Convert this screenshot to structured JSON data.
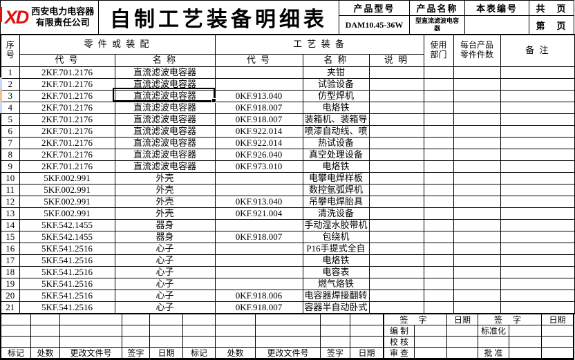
{
  "header": {
    "logo_text": "XD",
    "company_name": "西安电力电容器\n有限责任公司",
    "title": "自制工艺装备明细表",
    "product_model_label": "产品型号",
    "product_model_value": "DAM10.45-36W",
    "product_name_label": "产品名称",
    "product_name_value": "型直流滤波电容器",
    "sheet_number_label": "本表编号",
    "total_pages_label": "共　页",
    "page_number_label": "第　页"
  },
  "table": {
    "headers": {
      "seq": "序\n号",
      "parts_group": "零 件 或 装 配",
      "process_group": "工 艺 装 备",
      "part_code": "代  号",
      "part_name": "名  称",
      "proc_code": "代  号",
      "proc_name": "名  称",
      "description": "说   明",
      "department": "使用\n部门",
      "qty_per_product": "每台产品\n零件件数",
      "remark": "备   注"
    },
    "rows": [
      {
        "no": "1",
        "part_code": "2KF.701.2176",
        "part_name": "直流滤波电容器",
        "proc_code": "",
        "proc_name": "夹钳",
        "desc": "",
        "dept": "",
        "qty": "",
        "remark": ""
      },
      {
        "no": "2",
        "part_code": "2KF.701.2176",
        "part_name": "直流滤波电容器",
        "proc_code": "",
        "proc_name": "试验设备",
        "desc": "",
        "dept": "",
        "qty": "",
        "remark": ""
      },
      {
        "no": "3",
        "part_code": "2KF.701.2176",
        "part_name": "直流滤波电容器",
        "proc_code": "0KF.913.040",
        "proc_name": "仿型焊机",
        "desc": "",
        "dept": "",
        "qty": "",
        "remark": ""
      },
      {
        "no": "4",
        "part_code": "2KF.701.2176",
        "part_name": "直流滤波电容器",
        "proc_code": "0KF.918.007",
        "proc_name": "电烙铁",
        "desc": "",
        "dept": "",
        "qty": "",
        "remark": ""
      },
      {
        "no": "5",
        "part_code": "2KF.701.2176",
        "part_name": "直流滤波电容器",
        "proc_code": "0KF.918.007",
        "proc_name": "装箱机、装箱导",
        "desc": "",
        "dept": "",
        "qty": "",
        "remark": ""
      },
      {
        "no": "6",
        "part_code": "2KF.701.2176",
        "part_name": "直流滤波电容器",
        "proc_code": "0KF.922.014",
        "proc_name": "喷漆自动线、喷",
        "desc": "",
        "dept": "",
        "qty": "",
        "remark": ""
      },
      {
        "no": "7",
        "part_code": "2KF.701.2176",
        "part_name": "直流滤波电容器",
        "proc_code": "0KF.922.014",
        "proc_name": "热试设备",
        "desc": "",
        "dept": "",
        "qty": "",
        "remark": ""
      },
      {
        "no": "8",
        "part_code": "2KF.701.2176",
        "part_name": "直流滤波电容器",
        "proc_code": "0KF.926.040",
        "proc_name": "真空处理设备",
        "desc": "",
        "dept": "",
        "qty": "",
        "remark": ""
      },
      {
        "no": "9",
        "part_code": "2KF.701.2176",
        "part_name": "直流滤波电容器",
        "proc_code": "0KF.973.010",
        "proc_name": "电烙铁",
        "desc": "",
        "dept": "",
        "qty": "",
        "remark": ""
      },
      {
        "no": "10",
        "part_code": "5KF.002.991",
        "part_name": "外壳",
        "proc_code": "",
        "proc_name": "电攀电焊样板",
        "desc": "",
        "dept": "",
        "qty": "",
        "remark": ""
      },
      {
        "no": "11",
        "part_code": "5KF.002.991",
        "part_name": "外壳",
        "proc_code": "",
        "proc_name": "数控氩弧焊机",
        "desc": "",
        "dept": "",
        "qty": "",
        "remark": ""
      },
      {
        "no": "12",
        "part_code": "5KF.002.991",
        "part_name": "外壳",
        "proc_code": "0KF.913.040",
        "proc_name": "吊攀电焊胎具",
        "desc": "",
        "dept": "",
        "qty": "",
        "remark": ""
      },
      {
        "no": "13",
        "part_code": "5KF.002.991",
        "part_name": "外壳",
        "proc_code": "0KF.921.004",
        "proc_name": "清洗设备",
        "desc": "",
        "dept": "",
        "qty": "",
        "remark": ""
      },
      {
        "no": "14",
        "part_code": "5KF.542.1455",
        "part_name": "器身",
        "proc_code": "",
        "proc_name": "手动湿水胶带机",
        "desc": "",
        "dept": "",
        "qty": "",
        "remark": ""
      },
      {
        "no": "15",
        "part_code": "5KF.542.1455",
        "part_name": "器身",
        "proc_code": "0KF.918.007",
        "proc_name": "包绕机",
        "desc": "",
        "dept": "",
        "qty": "",
        "remark": ""
      },
      {
        "no": "16",
        "part_code": "5KF.541.2516",
        "part_name": "心子",
        "proc_code": "",
        "proc_name": "P16手提式全自",
        "desc": "",
        "dept": "",
        "qty": "",
        "remark": ""
      },
      {
        "no": "17",
        "part_code": "5KF.541.2516",
        "part_name": "心子",
        "proc_code": "",
        "proc_name": "电烙铁",
        "desc": "",
        "dept": "",
        "qty": "",
        "remark": ""
      },
      {
        "no": "18",
        "part_code": "5KF.541.2516",
        "part_name": "心子",
        "proc_code": "",
        "proc_name": "电容表",
        "desc": "",
        "dept": "",
        "qty": "",
        "remark": ""
      },
      {
        "no": "19",
        "part_code": "5KF.541.2516",
        "part_name": "心子",
        "proc_code": "",
        "proc_name": "燃气烙铁",
        "desc": "",
        "dept": "",
        "qty": "",
        "remark": ""
      },
      {
        "no": "20",
        "part_code": "5KF.541.2516",
        "part_name": "心子",
        "proc_code": "0KF.918.006",
        "proc_name": "电容器焊接翻转",
        "desc": "",
        "dept": "",
        "qty": "",
        "remark": ""
      },
      {
        "no": "21",
        "part_code": "5KF.541.2516",
        "part_name": "心子",
        "proc_code": "0KF.918.007",
        "proc_name": "容器半自动卧式",
        "desc": "",
        "dept": "",
        "qty": "",
        "remark": ""
      }
    ],
    "selected_row_no": "3",
    "selected_column": "part_name"
  },
  "footer": {
    "left_labels": [
      "标记",
      "处数",
      "更改文件号",
      "签字",
      "日期",
      "标记",
      "处数",
      "更改文件号",
      "签字",
      "日期"
    ],
    "left_empty_rows": 3,
    "sign": {
      "sign1": "签  字",
      "date1": "日期",
      "sign2": "签  字",
      "date2": "日期",
      "prepared": "编 制",
      "checked": "校 核",
      "reviewed": "审 查",
      "standardization": "标准化",
      "approved": "批 准"
    }
  },
  "colors": {
    "logo_red": "#e01010",
    "selection_border": "#000000",
    "row_stripe_selected": "#fabf8f",
    "row_stripe_normal": "#c5d9f1",
    "grid_line": "#000000"
  }
}
